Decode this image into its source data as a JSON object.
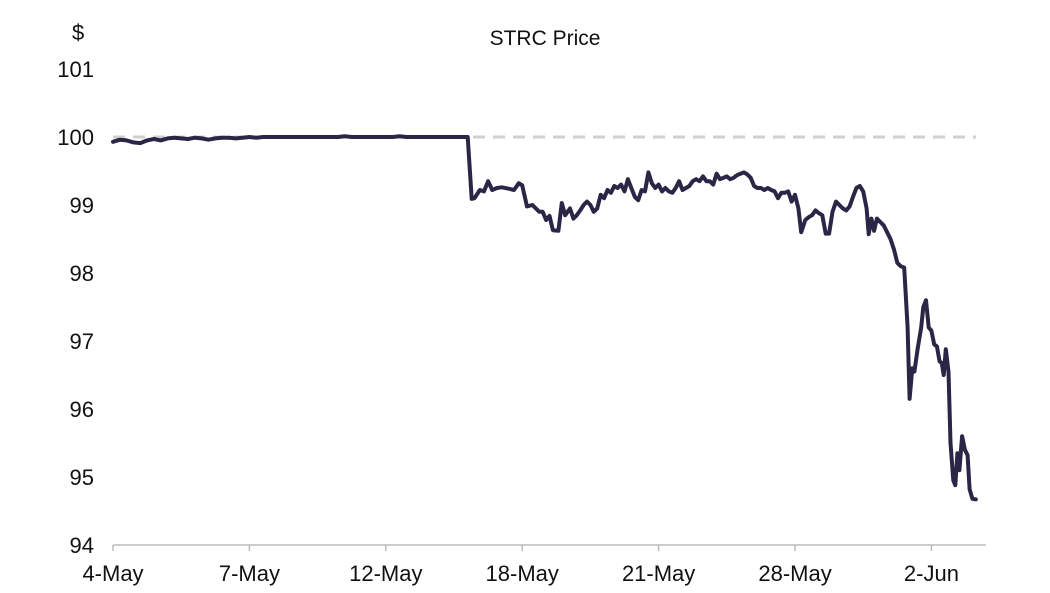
{
  "chart_data": {
    "type": "line",
    "title": "STRC Price",
    "ylabel": "$",
    "xlabel": "",
    "ylim": [
      94,
      101
    ],
    "yticks": [
      94,
      95,
      96,
      97,
      98,
      99,
      100,
      101
    ],
    "x_tick_labels": [
      "4-May",
      "7-May",
      "12-May",
      "18-May",
      "21-May",
      "28-May",
      "2-Jun"
    ],
    "x_tick_index": [
      0,
      20,
      40,
      60,
      80,
      100,
      120
    ],
    "x_max_index": 128,
    "reference_line": {
      "value": 100,
      "style": "dashed"
    },
    "grid": false,
    "legend": "none",
    "series": [
      {
        "color": "#2b2546",
        "points": [
          [
            0,
            99.93
          ],
          [
            1,
            99.96
          ],
          [
            2,
            99.95
          ],
          [
            3,
            99.92
          ],
          [
            4,
            99.91
          ],
          [
            5,
            99.95
          ],
          [
            6,
            99.97
          ],
          [
            7,
            99.95
          ],
          [
            8,
            99.98
          ],
          [
            9,
            99.99
          ],
          [
            10,
            99.98
          ],
          [
            11,
            99.97
          ],
          [
            12,
            99.99
          ],
          [
            13,
            99.98
          ],
          [
            14,
            99.96
          ],
          [
            15,
            99.98
          ],
          [
            16,
            99.99
          ],
          [
            17,
            99.99
          ],
          [
            18,
            99.98
          ],
          [
            19,
            99.99
          ],
          [
            20,
            100.0
          ],
          [
            21,
            99.99
          ],
          [
            22,
            100.0
          ],
          [
            23,
            100.0
          ],
          [
            24,
            100.0
          ],
          [
            25,
            100.0
          ],
          [
            26,
            100.0
          ],
          [
            27,
            100.0
          ],
          [
            28,
            100.0
          ],
          [
            29,
            100.0
          ],
          [
            30,
            100.0
          ],
          [
            31,
            100.0
          ],
          [
            32,
            100.0
          ],
          [
            33,
            100.0
          ],
          [
            34,
            100.01
          ],
          [
            35,
            100.0
          ],
          [
            36,
            100.0
          ],
          [
            37,
            100.0
          ],
          [
            38,
            100.0
          ],
          [
            39,
            100.0
          ],
          [
            40,
            100.0
          ],
          [
            41,
            100.0
          ],
          [
            42,
            100.01
          ],
          [
            43,
            100.0
          ],
          [
            44,
            100.0
          ],
          [
            45,
            100.0
          ],
          [
            46,
            100.0
          ],
          [
            47,
            100.0
          ],
          [
            48,
            100.0
          ],
          [
            49,
            100.0
          ],
          [
            50,
            100.0
          ],
          [
            51,
            100.0
          ],
          [
            52,
            100.0
          ],
          [
            52.6,
            99.09
          ],
          [
            53,
            99.1
          ],
          [
            53.8,
            99.22
          ],
          [
            54.4,
            99.2
          ],
          [
            55,
            99.35
          ],
          [
            55.6,
            99.22
          ],
          [
            56.3,
            99.25
          ],
          [
            57,
            99.26
          ],
          [
            58,
            99.24
          ],
          [
            58.8,
            99.22
          ],
          [
            59.5,
            99.32
          ],
          [
            60,
            99.29
          ],
          [
            60.7,
            98.98
          ],
          [
            61.5,
            99.0
          ],
          [
            62.5,
            98.9
          ],
          [
            63,
            98.9
          ],
          [
            63.5,
            98.78
          ],
          [
            64,
            98.84
          ],
          [
            64.5,
            98.63
          ],
          [
            65.3,
            98.62
          ],
          [
            65.8,
            99.03
          ],
          [
            66.3,
            98.85
          ],
          [
            67,
            98.95
          ],
          [
            67.5,
            98.8
          ],
          [
            68,
            98.85
          ],
          [
            68.5,
            98.92
          ],
          [
            69,
            99.0
          ],
          [
            69.5,
            99.05
          ],
          [
            70,
            99.0
          ],
          [
            70.5,
            98.9
          ],
          [
            71,
            98.95
          ],
          [
            71.5,
            99.15
          ],
          [
            72,
            99.1
          ],
          [
            72.5,
            99.22
          ],
          [
            73,
            99.18
          ],
          [
            73.5,
            99.28
          ],
          [
            74,
            99.25
          ],
          [
            74.5,
            99.3
          ],
          [
            75,
            99.2
          ],
          [
            75.5,
            99.38
          ],
          [
            76,
            99.25
          ],
          [
            76.5,
            99.12
          ],
          [
            77,
            99.07
          ],
          [
            77.5,
            99.22
          ],
          [
            78,
            99.2
          ],
          [
            78.5,
            99.48
          ],
          [
            79,
            99.32
          ],
          [
            79.5,
            99.25
          ],
          [
            80,
            99.3
          ],
          [
            80.5,
            99.2
          ],
          [
            81,
            99.25
          ],
          [
            81.5,
            99.2
          ],
          [
            82,
            99.18
          ],
          [
            82.5,
            99.25
          ],
          [
            83,
            99.35
          ],
          [
            83.5,
            99.22
          ],
          [
            84,
            99.25
          ],
          [
            84.5,
            99.28
          ],
          [
            85,
            99.35
          ],
          [
            85.5,
            99.38
          ],
          [
            86,
            99.35
          ],
          [
            86.5,
            99.42
          ],
          [
            87,
            99.35
          ],
          [
            87.5,
            99.35
          ],
          [
            88,
            99.3
          ],
          [
            88.5,
            99.46
          ],
          [
            89,
            99.38
          ],
          [
            89.5,
            99.4
          ],
          [
            90,
            99.42
          ],
          [
            90.5,
            99.38
          ],
          [
            91,
            99.4
          ],
          [
            91.5,
            99.44
          ],
          [
            92,
            99.46
          ],
          [
            92.5,
            99.48
          ],
          [
            93,
            99.45
          ],
          [
            93.5,
            99.4
          ],
          [
            94,
            99.28
          ],
          [
            94.5,
            99.25
          ],
          [
            95,
            99.25
          ],
          [
            95.5,
            99.22
          ],
          [
            96,
            99.25
          ],
          [
            96.5,
            99.22
          ],
          [
            97,
            99.2
          ],
          [
            97.5,
            99.1
          ],
          [
            98,
            99.18
          ],
          [
            98.5,
            99.18
          ],
          [
            99,
            99.2
          ],
          [
            99.5,
            99.05
          ],
          [
            100,
            99.15
          ],
          [
            100.5,
            98.95
          ],
          [
            100.9,
            98.6
          ],
          [
            101.5,
            98.78
          ],
          [
            102,
            98.82
          ],
          [
            102.5,
            98.85
          ],
          [
            103,
            98.92
          ],
          [
            103.5,
            98.88
          ],
          [
            104,
            98.85
          ],
          [
            104.5,
            98.58
          ],
          [
            105,
            98.58
          ],
          [
            105.5,
            98.9
          ],
          [
            106,
            99.05
          ],
          [
            106.5,
            99.0
          ],
          [
            107,
            98.95
          ],
          [
            107.5,
            98.92
          ],
          [
            108,
            98.98
          ],
          [
            108.5,
            99.12
          ],
          [
            109,
            99.25
          ],
          [
            109.5,
            99.28
          ],
          [
            110,
            99.2
          ],
          [
            110.5,
            98.95
          ],
          [
            110.8,
            98.57
          ],
          [
            111.2,
            98.8
          ],
          [
            111.6,
            98.62
          ],
          [
            112,
            98.8
          ],
          [
            112.5,
            98.75
          ],
          [
            113,
            98.7
          ],
          [
            113.5,
            98.6
          ],
          [
            114,
            98.5
          ],
          [
            114.5,
            98.35
          ],
          [
            115,
            98.15
          ],
          [
            115.5,
            98.1
          ],
          [
            116,
            98.08
          ],
          [
            116.5,
            97.2
          ],
          [
            116.8,
            96.15
          ],
          [
            117.2,
            96.6
          ],
          [
            117.5,
            96.55
          ],
          [
            118,
            96.9
          ],
          [
            118.5,
            97.2
          ],
          [
            118.8,
            97.5
          ],
          [
            119.2,
            97.6
          ],
          [
            119.6,
            97.2
          ],
          [
            120,
            97.15
          ],
          [
            120.4,
            96.95
          ],
          [
            120.8,
            96.92
          ],
          [
            121.2,
            96.7
          ],
          [
            121.5,
            96.68
          ],
          [
            121.8,
            96.5
          ],
          [
            122.1,
            96.88
          ],
          [
            122.5,
            96.55
          ],
          [
            122.8,
            95.5
          ],
          [
            123.2,
            94.95
          ],
          [
            123.5,
            94.88
          ],
          [
            123.8,
            95.35
          ],
          [
            124.1,
            95.1
          ],
          [
            124.5,
            95.6
          ],
          [
            124.9,
            95.4
          ],
          [
            125.3,
            95.32
          ],
          [
            125.6,
            94.82
          ],
          [
            126,
            94.68
          ],
          [
            126.5,
            94.67
          ]
        ]
      }
    ]
  }
}
